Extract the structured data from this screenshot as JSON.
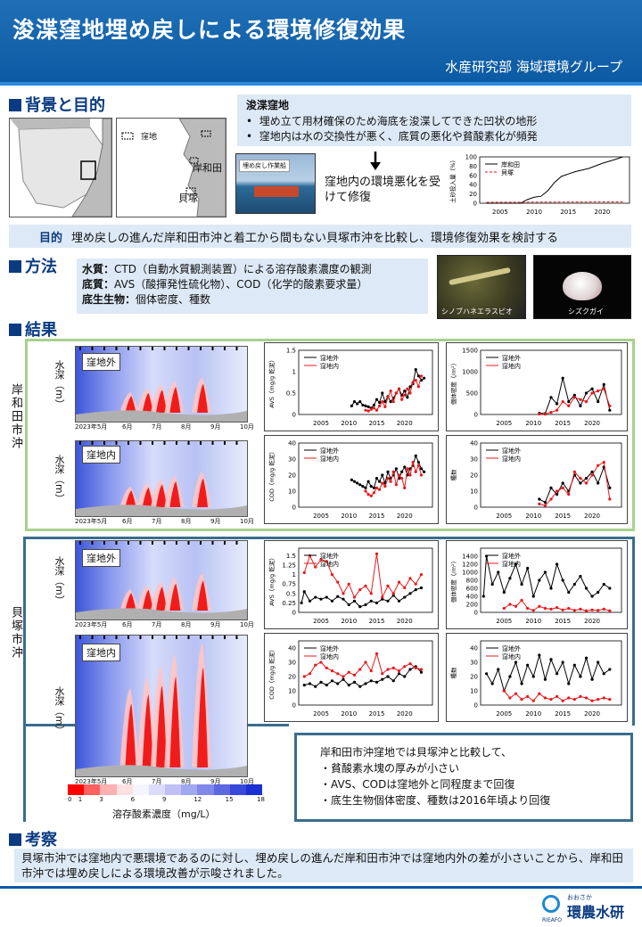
{
  "header": {
    "title": "浚渫窪地埋め戻しによる環境修復効果",
    "dept": "水産研究部 海域環境グループ"
  },
  "bg": {
    "heading": "背景と目的",
    "box_title": "浚渫窪地",
    "bullets": [
      "埋め立て用材確保のため海底を浚渫してできた凹状の地形",
      "窪地内は水の交換性が悪く、底質の悪化や貧酸素化が頻発"
    ],
    "map_legend": "窪地",
    "map_kishiwada": "岸和田",
    "map_kaizuka": "貝塚",
    "photo_label": "埋め戻し作業船",
    "arrow_text": "窪地内の環境悪化を受けて修復",
    "purpose_label": "目的",
    "purpose_text": "埋め戻しの進んだ岸和田市沖と着工から間もない貝塚市沖を比較し、環境修復効果を検討する"
  },
  "method": {
    "heading": "方法",
    "lines": [
      {
        "k": "水質：",
        "v": "CTD（自動水質観測装置）による溶存酸素濃度の観測"
      },
      {
        "k": "底質：",
        "v": "AVS（酸揮発性硫化物）、COD（化学的酸素要求量）"
      },
      {
        "k": "底生生物：",
        "v": "個体密度、種数"
      }
    ],
    "photo1": "シノブハネエラスピオ",
    "photo2": "シズクガイ"
  },
  "results": {
    "heading": "結果",
    "area1": "岸和田市沖",
    "area2": "貝塚市沖",
    "outside": "窪地外",
    "inside": "窪地内",
    "depth_label": "水深（m）",
    "xmonths": [
      "2023年5月",
      "6月",
      "7月",
      "8月",
      "9月",
      "10月"
    ],
    "colorbar_label": "溶存酸素濃度（mg/L）",
    "colorbar_ticks": [
      "0",
      "1",
      "3",
      "6",
      "9",
      "12",
      "15",
      "18"
    ],
    "summary": [
      "岸和田市沖窪地では貝塚沖と比較して、",
      "・貧酸素水塊の厚みが小さい",
      "・AVS、CODは窪地外と同程度まで回復",
      "・底生生物個体密度、種数は2016年頃より回復"
    ]
  },
  "discussion": {
    "heading": "考察",
    "text": "貝塚市沖では窪地内で悪環境であるのに対し、埋め戻しの進んだ岸和田市沖では窪地内外の差が小さいことから、岸和田市沖では埋め戻しによる環境改善が示唆されました。"
  },
  "logo": {
    "small": "おおさか",
    "main": "環農水研",
    "abbr": "RIEAFO"
  },
  "colors": {
    "outside": "#000000",
    "inside": "#e8191c",
    "header": "#0c5aa3"
  },
  "chart_data": [
    {
      "type": "line",
      "title": "",
      "ylabel": "土砂投入量（%）",
      "xlim": [
        2002,
        2024
      ],
      "ylim": [
        0,
        100
      ],
      "x_ticks": [
        2005,
        2010,
        2015,
        2020
      ],
      "y_ticks": [
        0,
        20,
        40,
        60,
        80,
        100
      ],
      "series": [
        {
          "name": "岸和田",
          "x": [
            2003,
            2008,
            2009,
            2010,
            2011,
            2012,
            2013,
            2014,
            2016,
            2018,
            2020,
            2022,
            2023
          ],
          "y": [
            0,
            0,
            8,
            13,
            15,
            27,
            45,
            58,
            68,
            75,
            86,
            95,
            100
          ]
        },
        {
          "name": "貝塚",
          "x": [
            2003,
            2023
          ],
          "y": [
            2,
            3
          ]
        }
      ]
    },
    {
      "type": "line",
      "id": "k-avs",
      "ylabel": "AVS（mg/g 乾泥）",
      "xlim": [
        2001,
        2025
      ],
      "ylim": [
        0,
        1.5
      ],
      "x_ticks": [
        2005,
        2010,
        2015,
        2020
      ],
      "y_ticks": [
        0,
        0.5,
        1,
        1.5
      ],
      "series": [
        {
          "name": "窪地外",
          "x": [
            2010.5,
            2011,
            2011.5,
            2012,
            2012.5,
            2013,
            2013.5,
            2014,
            2014.5,
            2015,
            2015.5,
            2016,
            2016.5,
            2017,
            2017.5,
            2018,
            2018.5,
            2019,
            2019.5,
            2020,
            2020.5,
            2021,
            2021.5,
            2022,
            2022.5,
            2023,
            2023.5
          ],
          "y": [
            0.2,
            0.3,
            0.25,
            0.3,
            0.22,
            0.2,
            0.18,
            0.15,
            0.22,
            0.35,
            0.28,
            0.5,
            0.3,
            0.42,
            0.3,
            0.38,
            0.5,
            0.6,
            0.45,
            0.55,
            0.4,
            0.65,
            0.72,
            1.05,
            0.9,
            0.8,
            0.85
          ]
        },
        {
          "name": "窪地内",
          "x": [
            2013,
            2013.5,
            2014,
            2014.5,
            2015,
            2015.5,
            2016,
            2016.5,
            2017,
            2017.5,
            2018,
            2018.5,
            2019,
            2019.5,
            2020,
            2020.5,
            2021,
            2021.5,
            2022,
            2022.5,
            2023
          ],
          "y": [
            0.1,
            0.08,
            0.12,
            0.15,
            0.1,
            0.2,
            0.3,
            0.18,
            0.4,
            0.55,
            0.3,
            0.5,
            0.6,
            0.35,
            0.45,
            0.6,
            0.5,
            0.75,
            0.8,
            0.65,
            0.9
          ]
        }
      ]
    },
    {
      "type": "line",
      "id": "k-cod",
      "ylabel": "COD（mg/g 乾泥）",
      "xlim": [
        2001,
        2025
      ],
      "ylim": [
        0,
        40
      ],
      "x_ticks": [
        2005,
        2010,
        2015,
        2020
      ],
      "y_ticks": [
        0,
        10,
        20,
        30,
        40
      ],
      "series": [
        {
          "name": "窪地外",
          "x": [
            2010.5,
            2011,
            2011.5,
            2012,
            2012.5,
            2013,
            2013.5,
            2014,
            2014.5,
            2015,
            2015.5,
            2016,
            2016.5,
            2017,
            2017.5,
            2018,
            2018.5,
            2019,
            2019.5,
            2020,
            2020.5,
            2021,
            2021.5,
            2022,
            2022.5,
            2023,
            2023.5
          ],
          "y": [
            17,
            16,
            15,
            14,
            13,
            12,
            16,
            13,
            12,
            18,
            16,
            20,
            15,
            22,
            18,
            20,
            24,
            18,
            22,
            25,
            20,
            24,
            26,
            32,
            28,
            24,
            22
          ]
        },
        {
          "name": "窪地内",
          "x": [
            2013,
            2013.5,
            2014,
            2014.5,
            2015,
            2015.5,
            2016,
            2016.5,
            2017,
            2017.5,
            2018,
            2018.5,
            2019,
            2019.5,
            2020,
            2020.5,
            2021,
            2021.5,
            2022,
            2022.5,
            2023
          ],
          "y": [
            10,
            8,
            7,
            9,
            12,
            11,
            15,
            13,
            18,
            16,
            22,
            14,
            20,
            18,
            12,
            24,
            20,
            28,
            22,
            26,
            20
          ]
        }
      ]
    },
    {
      "type": "line",
      "id": "k-den",
      "ylabel": "個体密度（/m²）",
      "xlim": [
        2001,
        2025
      ],
      "ylim": [
        0,
        1500
      ],
      "x_ticks": [
        2005,
        2010,
        2015,
        2020
      ],
      "y_ticks": [
        0,
        500,
        1000,
        1500
      ],
      "series": [
        {
          "name": "窪地外",
          "x": [
            2011,
            2012,
            2013,
            2014,
            2015,
            2016,
            2017,
            2018,
            2019,
            2020,
            2021,
            2022,
            2023
          ],
          "y": [
            30,
            20,
            400,
            250,
            850,
            300,
            450,
            200,
            500,
            600,
            300,
            700,
            100
          ]
        },
        {
          "name": "窪地内",
          "x": [
            2011,
            2012,
            2013,
            2014,
            2015,
            2016,
            2017,
            2018,
            2019,
            2020,
            2021,
            2022,
            2023
          ],
          "y": [
            10,
            5,
            50,
            100,
            300,
            200,
            400,
            350,
            300,
            500,
            550,
            600,
            200
          ]
        }
      ]
    },
    {
      "type": "line",
      "id": "k-sp",
      "ylabel": "種数",
      "xlim": [
        2001,
        2025
      ],
      "ylim": [
        0,
        40
      ],
      "x_ticks": [
        2005,
        2010,
        2015,
        2020
      ],
      "y_ticks": [
        0,
        10,
        20,
        30,
        40
      ],
      "series": [
        {
          "name": "窪地外",
          "x": [
            2011,
            2012,
            2013,
            2014,
            2015,
            2016,
            2017,
            2018,
            2019,
            2020,
            2021,
            2022,
            2023
          ],
          "y": [
            5,
            3,
            12,
            8,
            15,
            10,
            20,
            15,
            18,
            22,
            15,
            25,
            12
          ]
        },
        {
          "name": "窪地内",
          "x": [
            2011,
            2012,
            2013,
            2014,
            2015,
            2016,
            2017,
            2018,
            2019,
            2020,
            2021,
            2022,
            2023
          ],
          "y": [
            2,
            1,
            5,
            10,
            12,
            8,
            22,
            18,
            15,
            20,
            26,
            28,
            5
          ]
        }
      ]
    },
    {
      "type": "line",
      "id": "j-avs",
      "ylabel": "AVS（mg/g 乾泥）",
      "xlim": [
        2001,
        2025
      ],
      "ylim": [
        0,
        1.7
      ],
      "x_ticks": [
        2005,
        2010,
        2015,
        2020
      ],
      "y_ticks": [
        0,
        0.25,
        0.5,
        0.75,
        1,
        1.25,
        1.5
      ],
      "series": [
        {
          "name": "窪地外",
          "x": [
            2001.5,
            2002,
            2003,
            2004,
            2005,
            2006,
            2007,
            2008,
            2009,
            2010,
            2011,
            2012,
            2013,
            2014,
            2015,
            2016,
            2017,
            2018,
            2019,
            2020,
            2021,
            2022,
            2023
          ],
          "y": [
            0.25,
            0.55,
            0.3,
            0.4,
            0.35,
            0.4,
            0.3,
            0.42,
            0.35,
            0.2,
            0.3,
            0.15,
            0.2,
            0.3,
            0.25,
            0.35,
            0.3,
            0.45,
            0.3,
            0.4,
            0.5,
            0.6,
            0.65
          ]
        },
        {
          "name": "窪地内",
          "x": [
            2002,
            2003,
            2004,
            2005,
            2006,
            2007,
            2008,
            2009,
            2010,
            2011,
            2012,
            2013,
            2014,
            2015,
            2016,
            2017,
            2018,
            2019,
            2020,
            2021,
            2022,
            2023
          ],
          "y": [
            1.05,
            1.5,
            1.2,
            1.4,
            1.35,
            1.0,
            0.8,
            0.5,
            0.75,
            0.4,
            0.6,
            0.7,
            0.5,
            1.55,
            0.4,
            0.7,
            0.5,
            0.8,
            0.65,
            0.9,
            0.75,
            1.0
          ]
        }
      ]
    },
    {
      "type": "line",
      "id": "j-cod",
      "ylabel": "COD（mg/g 乾泥）",
      "xlim": [
        2001,
        2025
      ],
      "ylim": [
        0,
        45
      ],
      "x_ticks": [
        2005,
        2010,
        2015,
        2020
      ],
      "y_ticks": [
        0,
        10,
        20,
        30,
        40
      ],
      "series": [
        {
          "name": "窪地外",
          "x": [
            2002,
            2003,
            2004,
            2005,
            2006,
            2007,
            2008,
            2009,
            2010,
            2011,
            2012,
            2013,
            2014,
            2015,
            2016,
            2017,
            2018,
            2019,
            2020,
            2021,
            2022,
            2023
          ],
          "y": [
            14,
            15,
            13,
            16,
            14,
            17,
            15,
            18,
            14,
            16,
            13,
            15,
            17,
            16,
            18,
            20,
            17,
            22,
            20,
            25,
            27,
            23
          ]
        },
        {
          "name": "窪地内",
          "x": [
            2002,
            2003,
            2004,
            2005,
            2006,
            2007,
            2008,
            2009,
            2010,
            2011,
            2012,
            2013,
            2014,
            2015,
            2016,
            2017,
            2018,
            2019,
            2020,
            2021,
            2022,
            2023
          ],
          "y": [
            20,
            22,
            28,
            30,
            26,
            24,
            22,
            20,
            23,
            21,
            25,
            30,
            24,
            36,
            22,
            25,
            26,
            24,
            27,
            29,
            26,
            25
          ]
        }
      ]
    },
    {
      "type": "line",
      "id": "j-den",
      "ylabel": "個体密度（/m²）",
      "xlim": [
        2001,
        2025
      ],
      "ylim": [
        0,
        1600
      ],
      "x_ticks": [
        2005,
        2010,
        2015,
        2020
      ],
      "y_ticks": [
        0,
        200,
        400,
        600,
        800,
        1000,
        1200,
        1400
      ],
      "series": [
        {
          "name": "窪地外",
          "x": [
            2001.5,
            2002,
            2003,
            2004,
            2005,
            2006,
            2007,
            2008,
            2009,
            2010,
            2011,
            2012,
            2013,
            2014,
            2015,
            2016,
            2017,
            2018,
            2019,
            2020,
            2021,
            2022,
            2023
          ],
          "y": [
            400,
            1400,
            700,
            1000,
            500,
            850,
            1200,
            700,
            1100,
            400,
            800,
            1000,
            600,
            1200,
            800,
            500,
            700,
            900,
            600,
            400,
            500,
            700,
            600
          ]
        },
        {
          "name": "窪地内",
          "x": [
            2005,
            2006,
            2007,
            2008,
            2009,
            2010,
            2011,
            2012,
            2013,
            2014,
            2015,
            2016,
            2017,
            2018,
            2019,
            2020,
            2021,
            2022,
            2023
          ],
          "y": [
            100,
            200,
            150,
            300,
            100,
            50,
            150,
            100,
            80,
            120,
            60,
            100,
            50,
            80,
            40,
            60,
            50,
            80,
            40
          ]
        }
      ]
    },
    {
      "type": "line",
      "id": "j-sp",
      "ylabel": "種数",
      "xlim": [
        2001,
        2025
      ],
      "ylim": [
        0,
        45
      ],
      "x_ticks": [
        2005,
        2010,
        2015,
        2020
      ],
      "y_ticks": [
        0,
        10,
        20,
        30,
        40
      ],
      "series": [
        {
          "name": "窪地外",
          "x": [
            2002,
            2003,
            2004,
            2005,
            2006,
            2007,
            2008,
            2009,
            2010,
            2011,
            2012,
            2013,
            2014,
            2015,
            2016,
            2017,
            2018,
            2019,
            2020,
            2021,
            2022,
            2023
          ],
          "y": [
            22,
            15,
            25,
            10,
            20,
            30,
            15,
            28,
            20,
            35,
            18,
            32,
            22,
            30,
            15,
            28,
            20,
            33,
            18,
            30,
            22,
            25
          ]
        },
        {
          "name": "窪地内",
          "x": [
            2005,
            2006,
            2007,
            2008,
            2009,
            2010,
            2011,
            2012,
            2013,
            2014,
            2015,
            2016,
            2017,
            2018,
            2019,
            2020,
            2021,
            2022,
            2023
          ],
          "y": [
            10,
            5,
            8,
            4,
            6,
            3,
            8,
            5,
            4,
            6,
            3,
            5,
            4,
            6,
            5,
            3,
            4,
            5,
            4
          ]
        }
      ]
    }
  ]
}
